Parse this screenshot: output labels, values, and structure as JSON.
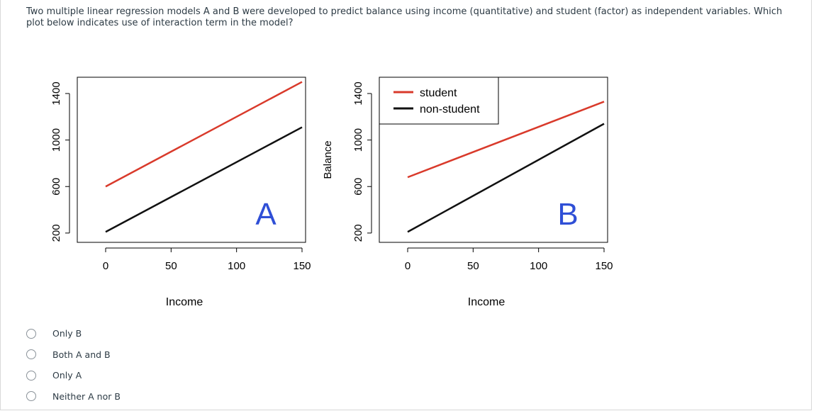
{
  "question": {
    "text": "Two multiple linear regression models A and B were developed to predict balance using income (quantitative) and student (factor) as independent variables. Which plot below indicates use of interaction term in the model?"
  },
  "chart_data": [
    {
      "type": "line",
      "title": "",
      "panel_label": "A",
      "xlabel": "Income",
      "ylabel": "Balance",
      "xlim": [
        0,
        150
      ],
      "ylim": [
        120,
        1540
      ],
      "x_ticks": [
        "0",
        "50",
        "100",
        "150"
      ],
      "y_ticks": [
        "200",
        "600",
        "1000",
        "1400"
      ],
      "series": [
        {
          "name": "student",
          "color": "#d93a2b",
          "x": [
            0,
            150
          ],
          "y": [
            600,
            1500
          ]
        },
        {
          "name": "non-student",
          "color": "#111111",
          "x": [
            0,
            150
          ],
          "y": [
            210,
            1110
          ]
        }
      ]
    },
    {
      "type": "line",
      "title": "",
      "panel_label": "B",
      "xlabel": "Income",
      "ylabel": "Balance",
      "xlim": [
        0,
        150
      ],
      "ylim": [
        120,
        1540
      ],
      "x_ticks": [
        "0",
        "50",
        "100",
        "150"
      ],
      "y_ticks": [
        "200",
        "600",
        "1000",
        "1400"
      ],
      "legend": {
        "placement": "top-left",
        "entries": [
          "student",
          "non-student"
        ]
      },
      "series": [
        {
          "name": "student",
          "color": "#d93a2b",
          "x": [
            0,
            150
          ],
          "y": [
            680,
            1330
          ]
        },
        {
          "name": "non-student",
          "color": "#111111",
          "x": [
            0,
            150
          ],
          "y": [
            210,
            1140
          ]
        }
      ]
    }
  ],
  "options": [
    {
      "label": "Only B"
    },
    {
      "label": "Both A and B"
    },
    {
      "label": "Only A"
    },
    {
      "label": "Neither A nor B"
    }
  ]
}
